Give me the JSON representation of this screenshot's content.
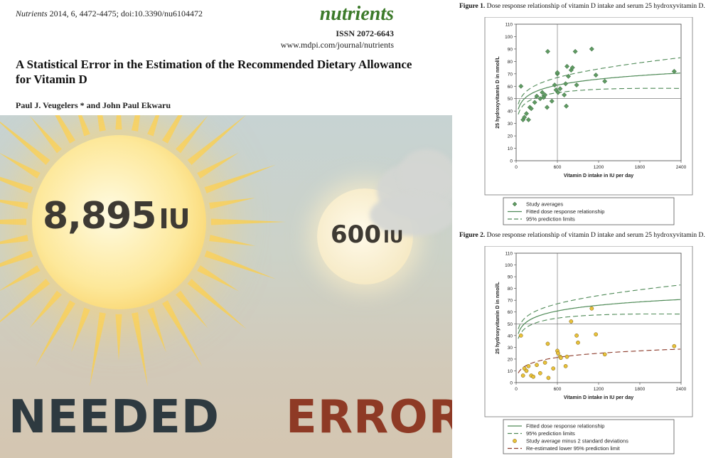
{
  "header": {
    "citation_journal": "Nutrients",
    "citation_rest": " 2014, 6, 4472-4475; doi:10.3390/nu6104472",
    "journal_name": "nutrients",
    "issn": "ISSN 2072-6643",
    "url": "www.mdpi.com/journal/nutrients",
    "title": "A Statistical Error in the Estimation of the Recommended Dietary Allowance for Vitamin D",
    "authors": "Paul J. Veugelers * and John Paul Ekwaru"
  },
  "poster": {
    "big_value": "8,895",
    "big_unit": "IU",
    "small_value": "600",
    "small_unit": "IU",
    "left_word": "NEEDED",
    "right_word": "ERROR",
    "colors": {
      "left_word": "#2e3a40",
      "right_word": "#8e3a25",
      "sun": "#f6c54a"
    }
  },
  "figure1": {
    "caption_label": "Figure 1.",
    "caption_text": " Dose response relationship of vitamin D intake and serum 25 hydroxyvitamin D.",
    "chart_data": {
      "type": "scatter",
      "xlabel": "Vitamin D intake in IU per day",
      "ylabel": "25 hydroxyvitamin D in nmol/L",
      "xlim": [
        0,
        2400
      ],
      "ylim": [
        0,
        110
      ],
      "x_ticks": [
        "0",
        "600",
        "1200",
        "1800",
        "2400"
      ],
      "y_ticks": [
        "0",
        "10",
        "20",
        "30",
        "40",
        "50",
        "60",
        "70",
        "80",
        "90",
        "100",
        "110"
      ],
      "reference_lines": {
        "x": 600,
        "y": 50
      },
      "series": [
        {
          "name": "Study averages",
          "marker": "diamond",
          "color": "#4f8a57",
          "points": [
            [
              70,
              60
            ],
            [
              100,
              33
            ],
            [
              120,
              35
            ],
            [
              150,
              38
            ],
            [
              180,
              33
            ],
            [
              200,
              43
            ],
            [
              220,
              42
            ],
            [
              270,
              47
            ],
            [
              300,
              52
            ],
            [
              350,
              50
            ],
            [
              380,
              55
            ],
            [
              400,
              51
            ],
            [
              420,
              53
            ],
            [
              450,
              43
            ],
            [
              460,
              88
            ],
            [
              520,
              48
            ],
            [
              560,
              61
            ],
            [
              580,
              57
            ],
            [
              600,
              70
            ],
            [
              600,
              71
            ],
            [
              610,
              55
            ],
            [
              640,
              58
            ],
            [
              700,
              53
            ],
            [
              720,
              62
            ],
            [
              730,
              44
            ],
            [
              740,
              76
            ],
            [
              760,
              68
            ],
            [
              800,
              73
            ],
            [
              820,
              75
            ],
            [
              880,
              61
            ],
            [
              860,
              88
            ],
            [
              1100,
              90
            ],
            [
              1160,
              69
            ],
            [
              1290,
              64
            ],
            [
              2300,
              72
            ]
          ]
        },
        {
          "name": "Fitted dose response relationship",
          "style": "solid",
          "color": "#4f8a57"
        },
        {
          "name": "95% prediction limits",
          "style": "dashed",
          "color": "#4f8a57"
        }
      ],
      "legend": [
        "Study averages",
        "Fitted dose response relationship",
        "95% prediction limits"
      ],
      "legend_position": "bottom"
    }
  },
  "figure2": {
    "caption_label": "Figure 2.",
    "caption_text": " Dose response relationship of vitamin D intake and serum 25 hydroxyvitamin D.",
    "chart_data": {
      "type": "scatter",
      "xlabel": "Vitamin D intake in IU per day",
      "ylabel": "25 hydroxyvitamin D in nmol/L",
      "xlim": [
        0,
        2400
      ],
      "ylim": [
        0,
        110
      ],
      "x_ticks": [
        "0",
        "600",
        "1200",
        "1800",
        "2400"
      ],
      "y_ticks": [
        "0",
        "10",
        "20",
        "30",
        "40",
        "50",
        "60",
        "70",
        "80",
        "90",
        "100",
        "110"
      ],
      "reference_lines": {
        "x": 600,
        "y": 50
      },
      "series": [
        {
          "name": "Fitted dose response relationship",
          "style": "solid",
          "color": "#4f8a57"
        },
        {
          "name": "95% prediction limits",
          "style": "dashed",
          "color": "#4f8a57"
        },
        {
          "name": "Study average minus 2 standard deviations",
          "marker": "circle",
          "color": "#e8c23a",
          "points": [
            [
              70,
              40
            ],
            [
              100,
              6
            ],
            [
              120,
              12
            ],
            [
              150,
              10
            ],
            [
              180,
              14
            ],
            [
              220,
              6
            ],
            [
              250,
              5
            ],
            [
              300,
              15
            ],
            [
              350,
              8
            ],
            [
              420,
              17
            ],
            [
              460,
              33
            ],
            [
              470,
              4
            ],
            [
              540,
              12
            ],
            [
              600,
              27
            ],
            [
              610,
              25
            ],
            [
              640,
              22
            ],
            [
              650,
              21
            ],
            [
              720,
              14
            ],
            [
              740,
              22
            ],
            [
              800,
              52
            ],
            [
              880,
              40
            ],
            [
              900,
              34
            ],
            [
              1100,
              63
            ],
            [
              1160,
              41
            ],
            [
              1290,
              24
            ],
            [
              2300,
              31
            ]
          ]
        },
        {
          "name": "Re-estimated lower 95% prediction limit",
          "style": "dashed",
          "color": "#8b3a2a"
        }
      ],
      "legend": [
        "Fitted dose response relationship",
        "95% prediction limits",
        "Study average minus 2 standard deviations",
        "Re-estimated lower 95% prediction limit"
      ],
      "legend_position": "bottom"
    }
  }
}
